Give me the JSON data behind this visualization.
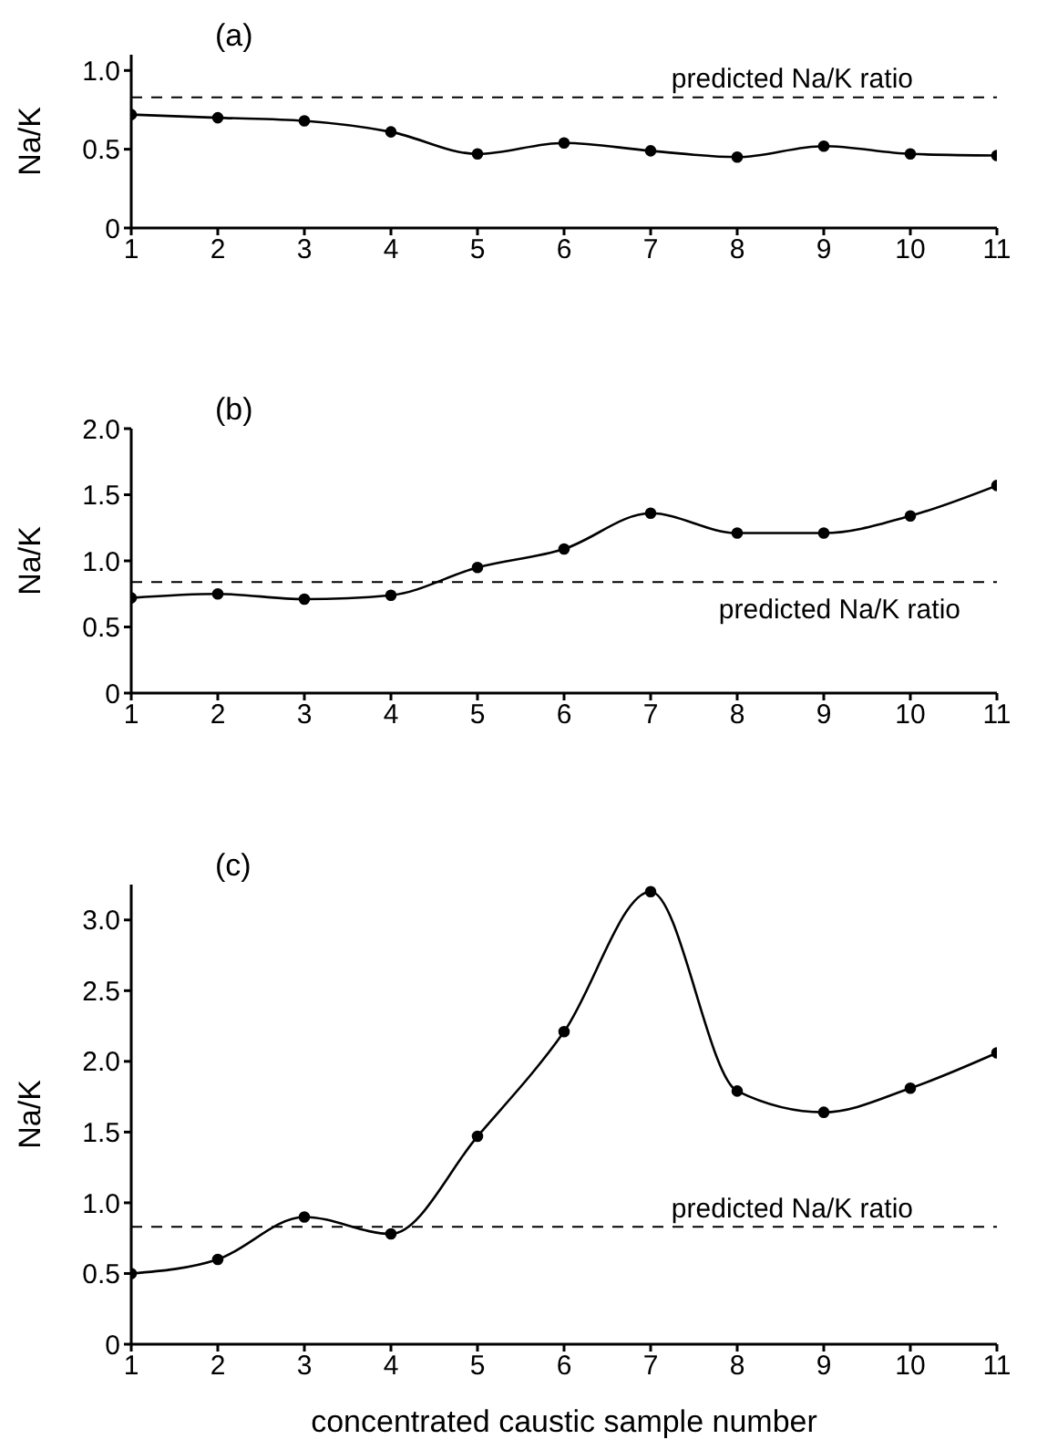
{
  "chart_data": [
    {
      "type": "line",
      "title": "(a)",
      "ylabel": "Na/K",
      "x": [
        1,
        2,
        3,
        4,
        5,
        6,
        7,
        8,
        9,
        10,
        11
      ],
      "xlim": [
        1,
        11
      ],
      "xticks": [
        1,
        2,
        3,
        4,
        5,
        6,
        7,
        8,
        9,
        10,
        11
      ],
      "ylim": [
        0,
        1.1
      ],
      "yticks": [
        {
          "value": 0,
          "label": "0"
        },
        {
          "value": 0.5,
          "label": "0.5"
        },
        {
          "value": 1,
          "label": "1.0"
        }
      ],
      "marker": "circle",
      "line_style": "solid",
      "grid": false,
      "legend": false,
      "series": [
        {
          "color": "#000000",
          "values": [
            0.72,
            0.7,
            0.68,
            0.61,
            0.47,
            0.54,
            0.49,
            0.45,
            0.52,
            0.47,
            0.46
          ]
        }
      ],
      "ref_lines": [
        {
          "axis": "y",
          "value": 0.83,
          "label": "predicted Na/K ratio",
          "line_style": "dashed",
          "color": "#000000"
        }
      ]
    },
    {
      "type": "line",
      "title": "(b)",
      "ylabel": "Na/K",
      "x": [
        1,
        2,
        3,
        4,
        5,
        6,
        7,
        8,
        9,
        10,
        11
      ],
      "xlim": [
        1,
        11
      ],
      "xticks": [
        1,
        2,
        3,
        4,
        5,
        6,
        7,
        8,
        9,
        10,
        11
      ],
      "ylim": [
        0,
        2.0
      ],
      "yticks": [
        {
          "value": 0,
          "label": "0"
        },
        {
          "value": 0.5,
          "label": "0.5"
        },
        {
          "value": 1,
          "label": "1.0"
        },
        {
          "value": 1.5,
          "label": "1.5"
        },
        {
          "value": 2,
          "label": "2.0"
        }
      ],
      "marker": "circle",
      "line_style": "solid",
      "grid": false,
      "legend": false,
      "series": [
        {
          "color": "#000000",
          "values": [
            0.72,
            0.75,
            0.71,
            0.74,
            0.95,
            1.09,
            1.36,
            1.21,
            1.21,
            1.34,
            1.57
          ]
        }
      ],
      "ref_lines": [
        {
          "axis": "y",
          "value": 0.84,
          "label": "predicted Na/K ratio",
          "line_style": "dashed",
          "color": "#000000"
        }
      ]
    },
    {
      "type": "line",
      "title": "(c)",
      "ylabel": "Na/K",
      "xlabel": "concentrated caustic sample number",
      "x": [
        1,
        2,
        3,
        4,
        5,
        6,
        7,
        8,
        9,
        10,
        11
      ],
      "xlim": [
        1,
        11
      ],
      "xticks": [
        1,
        2,
        3,
        4,
        5,
        6,
        7,
        8,
        9,
        10,
        11
      ],
      "ylim": [
        0,
        3.25
      ],
      "yticks": [
        {
          "value": 0,
          "label": "0"
        },
        {
          "value": 0.5,
          "label": "0.5"
        },
        {
          "value": 1,
          "label": "1.0"
        },
        {
          "value": 1.5,
          "label": "1.5"
        },
        {
          "value": 2,
          "label": "2.0"
        },
        {
          "value": 2.5,
          "label": "2.5"
        },
        {
          "value": 3,
          "label": "3.0"
        }
      ],
      "marker": "circle",
      "line_style": "solid",
      "grid": false,
      "legend": false,
      "series": [
        {
          "color": "#000000",
          "values": [
            0.5,
            0.6,
            0.9,
            0.78,
            1.47,
            2.21,
            3.2,
            1.79,
            1.64,
            1.81,
            2.06
          ]
        }
      ],
      "ref_lines": [
        {
          "axis": "y",
          "value": 0.83,
          "label": "predicted Na/K ratio",
          "line_style": "dashed",
          "color": "#000000"
        }
      ]
    }
  ]
}
